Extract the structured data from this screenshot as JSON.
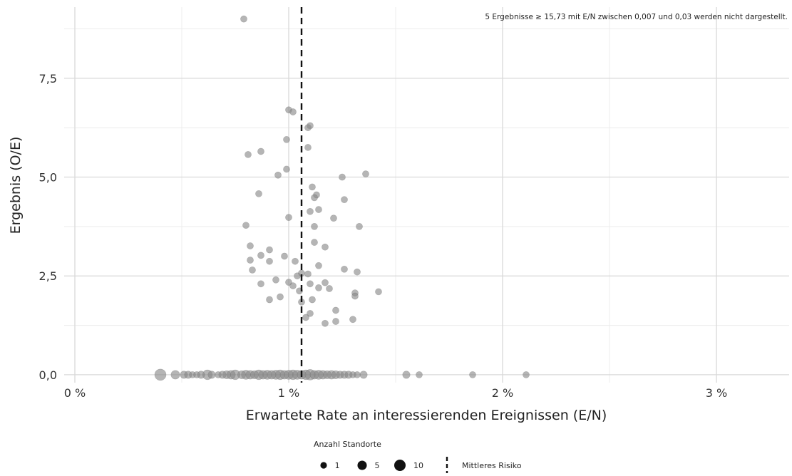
{
  "chart_data": {
    "type": "scatter",
    "xlabel": "Erwartete Rate an interessierenden Ereignissen (E/N)",
    "ylabel": "Ergebnis (O/E)",
    "annotation": "5 Ergebnisse ≥ 15,73 mit E/N zwischen 0,007 und 0,03 werden nicht dargestellt.",
    "xlim": [
      -0.0005,
      0.0334
    ],
    "ylim": [
      -0.2,
      9.3
    ],
    "x_ticks": [
      0,
      0.01,
      0.02,
      0.03
    ],
    "x_tick_labels": [
      "0 %",
      "1 %",
      "2 %",
      "3 %"
    ],
    "y_ticks": [
      0,
      2.5,
      5,
      7.5
    ],
    "y_tick_labels": [
      "0,0",
      "2,5",
      "5,0",
      "7,5"
    ],
    "grid": true,
    "reference_line": {
      "name": "Mittleres Risiko",
      "x": 0.0106,
      "style": "dashed"
    },
    "point_color": "#888888",
    "legend": {
      "size_title": "Anzahl Standorte",
      "size_entries": [
        {
          "label": "1",
          "value": 1
        },
        {
          "label": "5",
          "value": 5
        },
        {
          "label": "10",
          "value": 10
        }
      ],
      "line_label": "Mittleres Risiko",
      "position": "bottom"
    },
    "points": [
      {
        "x": 0.0079,
        "y": 9.0,
        "n": 1
      },
      {
        "x": 0.01,
        "y": 6.7,
        "n": 1
      },
      {
        "x": 0.0102,
        "y": 6.65,
        "n": 1
      },
      {
        "x": 0.011,
        "y": 6.3,
        "n": 1
      },
      {
        "x": 0.0109,
        "y": 6.25,
        "n": 1
      },
      {
        "x": 0.0099,
        "y": 5.95,
        "n": 1
      },
      {
        "x": 0.0109,
        "y": 5.75,
        "n": 1
      },
      {
        "x": 0.0087,
        "y": 5.65,
        "n": 1
      },
      {
        "x": 0.0081,
        "y": 5.57,
        "n": 1
      },
      {
        "x": 0.0099,
        "y": 5.2,
        "n": 1
      },
      {
        "x": 0.0136,
        "y": 5.08,
        "n": 1
      },
      {
        "x": 0.0095,
        "y": 5.05,
        "n": 1
      },
      {
        "x": 0.0125,
        "y": 5.0,
        "n": 1
      },
      {
        "x": 0.0111,
        "y": 4.75,
        "n": 1
      },
      {
        "x": 0.0086,
        "y": 4.58,
        "n": 1
      },
      {
        "x": 0.0113,
        "y": 4.55,
        "n": 1
      },
      {
        "x": 0.0112,
        "y": 4.48,
        "n": 1
      },
      {
        "x": 0.0126,
        "y": 4.43,
        "n": 1
      },
      {
        "x": 0.0114,
        "y": 4.18,
        "n": 1
      },
      {
        "x": 0.011,
        "y": 4.13,
        "n": 1
      },
      {
        "x": 0.01,
        "y": 3.98,
        "n": 1
      },
      {
        "x": 0.0121,
        "y": 3.96,
        "n": 1
      },
      {
        "x": 0.008,
        "y": 3.78,
        "n": 1
      },
      {
        "x": 0.0112,
        "y": 3.75,
        "n": 1
      },
      {
        "x": 0.0133,
        "y": 3.75,
        "n": 1
      },
      {
        "x": 0.0112,
        "y": 3.35,
        "n": 1
      },
      {
        "x": 0.0082,
        "y": 3.26,
        "n": 1
      },
      {
        "x": 0.0117,
        "y": 3.23,
        "n": 1
      },
      {
        "x": 0.0091,
        "y": 3.16,
        "n": 1
      },
      {
        "x": 0.0087,
        "y": 3.02,
        "n": 1
      },
      {
        "x": 0.0098,
        "y": 3.0,
        "n": 1
      },
      {
        "x": 0.0082,
        "y": 2.9,
        "n": 1
      },
      {
        "x": 0.0091,
        "y": 2.87,
        "n": 1
      },
      {
        "x": 0.0103,
        "y": 2.87,
        "n": 1
      },
      {
        "x": 0.0114,
        "y": 2.76,
        "n": 1
      },
      {
        "x": 0.0126,
        "y": 2.67,
        "n": 1
      },
      {
        "x": 0.0083,
        "y": 2.65,
        "n": 1
      },
      {
        "x": 0.0132,
        "y": 2.6,
        "n": 1
      },
      {
        "x": 0.0106,
        "y": 2.57,
        "n": 1
      },
      {
        "x": 0.0109,
        "y": 2.55,
        "n": 1
      },
      {
        "x": 0.0104,
        "y": 2.5,
        "n": 1
      },
      {
        "x": 0.0094,
        "y": 2.4,
        "n": 1
      },
      {
        "x": 0.01,
        "y": 2.34,
        "n": 1
      },
      {
        "x": 0.0117,
        "y": 2.33,
        "n": 1
      },
      {
        "x": 0.0087,
        "y": 2.3,
        "n": 1
      },
      {
        "x": 0.011,
        "y": 2.3,
        "n": 1
      },
      {
        "x": 0.0102,
        "y": 2.25,
        "n": 1
      },
      {
        "x": 0.0114,
        "y": 2.2,
        "n": 1
      },
      {
        "x": 0.0119,
        "y": 2.18,
        "n": 1
      },
      {
        "x": 0.0105,
        "y": 2.12,
        "n": 1
      },
      {
        "x": 0.0142,
        "y": 2.1,
        "n": 1
      },
      {
        "x": 0.0131,
        "y": 2.07,
        "n": 1
      },
      {
        "x": 0.0131,
        "y": 1.99,
        "n": 1
      },
      {
        "x": 0.0096,
        "y": 1.97,
        "n": 1
      },
      {
        "x": 0.0091,
        "y": 1.9,
        "n": 1
      },
      {
        "x": 0.0111,
        "y": 1.9,
        "n": 1
      },
      {
        "x": 0.0106,
        "y": 1.84,
        "n": 1
      },
      {
        "x": 0.0122,
        "y": 1.63,
        "n": 1
      },
      {
        "x": 0.011,
        "y": 1.55,
        "n": 1
      },
      {
        "x": 0.0108,
        "y": 1.45,
        "n": 1
      },
      {
        "x": 0.013,
        "y": 1.4,
        "n": 1
      },
      {
        "x": 0.0122,
        "y": 1.35,
        "n": 1
      },
      {
        "x": 0.0117,
        "y": 1.3,
        "n": 1
      },
      {
        "x": 0.004,
        "y": 0,
        "n": 10
      },
      {
        "x": 0.0047,
        "y": 0,
        "n": 4
      },
      {
        "x": 0.0051,
        "y": 0,
        "n": 2
      },
      {
        "x": 0.0053,
        "y": 0,
        "n": 2
      },
      {
        "x": 0.0055,
        "y": 0,
        "n": 1
      },
      {
        "x": 0.0057,
        "y": 0,
        "n": 1
      },
      {
        "x": 0.0059,
        "y": 0,
        "n": 2
      },
      {
        "x": 0.0062,
        "y": 0,
        "n": 6
      },
      {
        "x": 0.0064,
        "y": 0,
        "n": 2
      },
      {
        "x": 0.0067,
        "y": 0,
        "n": 1
      },
      {
        "x": 0.0069,
        "y": 0,
        "n": 2
      },
      {
        "x": 0.0071,
        "y": 0,
        "n": 3
      },
      {
        "x": 0.0073,
        "y": 0,
        "n": 4
      },
      {
        "x": 0.0075,
        "y": 0,
        "n": 6
      },
      {
        "x": 0.0078,
        "y": 0,
        "n": 3
      },
      {
        "x": 0.008,
        "y": 0,
        "n": 5
      },
      {
        "x": 0.0082,
        "y": 0,
        "n": 4
      },
      {
        "x": 0.0084,
        "y": 0,
        "n": 3
      },
      {
        "x": 0.0086,
        "y": 0,
        "n": 6
      },
      {
        "x": 0.0088,
        "y": 0,
        "n": 4
      },
      {
        "x": 0.009,
        "y": 0,
        "n": 5
      },
      {
        "x": 0.0092,
        "y": 0,
        "n": 4
      },
      {
        "x": 0.0094,
        "y": 0,
        "n": 5
      },
      {
        "x": 0.0096,
        "y": 0,
        "n": 6
      },
      {
        "x": 0.0098,
        "y": 0,
        "n": 4
      },
      {
        "x": 0.01,
        "y": 0,
        "n": 5
      },
      {
        "x": 0.0102,
        "y": 0,
        "n": 6
      },
      {
        "x": 0.0104,
        "y": 0,
        "n": 5
      },
      {
        "x": 0.0106,
        "y": 0,
        "n": 4
      },
      {
        "x": 0.0108,
        "y": 0,
        "n": 6
      },
      {
        "x": 0.011,
        "y": 0,
        "n": 8
      },
      {
        "x": 0.0112,
        "y": 0,
        "n": 4
      },
      {
        "x": 0.0114,
        "y": 0,
        "n": 5
      },
      {
        "x": 0.0116,
        "y": 0,
        "n": 4
      },
      {
        "x": 0.0118,
        "y": 0,
        "n": 3
      },
      {
        "x": 0.012,
        "y": 0,
        "n": 4
      },
      {
        "x": 0.0122,
        "y": 0,
        "n": 3
      },
      {
        "x": 0.0124,
        "y": 0,
        "n": 2
      },
      {
        "x": 0.0126,
        "y": 0,
        "n": 2
      },
      {
        "x": 0.0128,
        "y": 0,
        "n": 2
      },
      {
        "x": 0.013,
        "y": 0,
        "n": 1
      },
      {
        "x": 0.0132,
        "y": 0,
        "n": 1
      },
      {
        "x": 0.0135,
        "y": 0,
        "n": 2
      },
      {
        "x": 0.0155,
        "y": 0,
        "n": 2
      },
      {
        "x": 0.0161,
        "y": 0,
        "n": 1
      },
      {
        "x": 0.0186,
        "y": 0,
        "n": 1
      },
      {
        "x": 0.0211,
        "y": 0,
        "n": 1
      }
    ]
  }
}
